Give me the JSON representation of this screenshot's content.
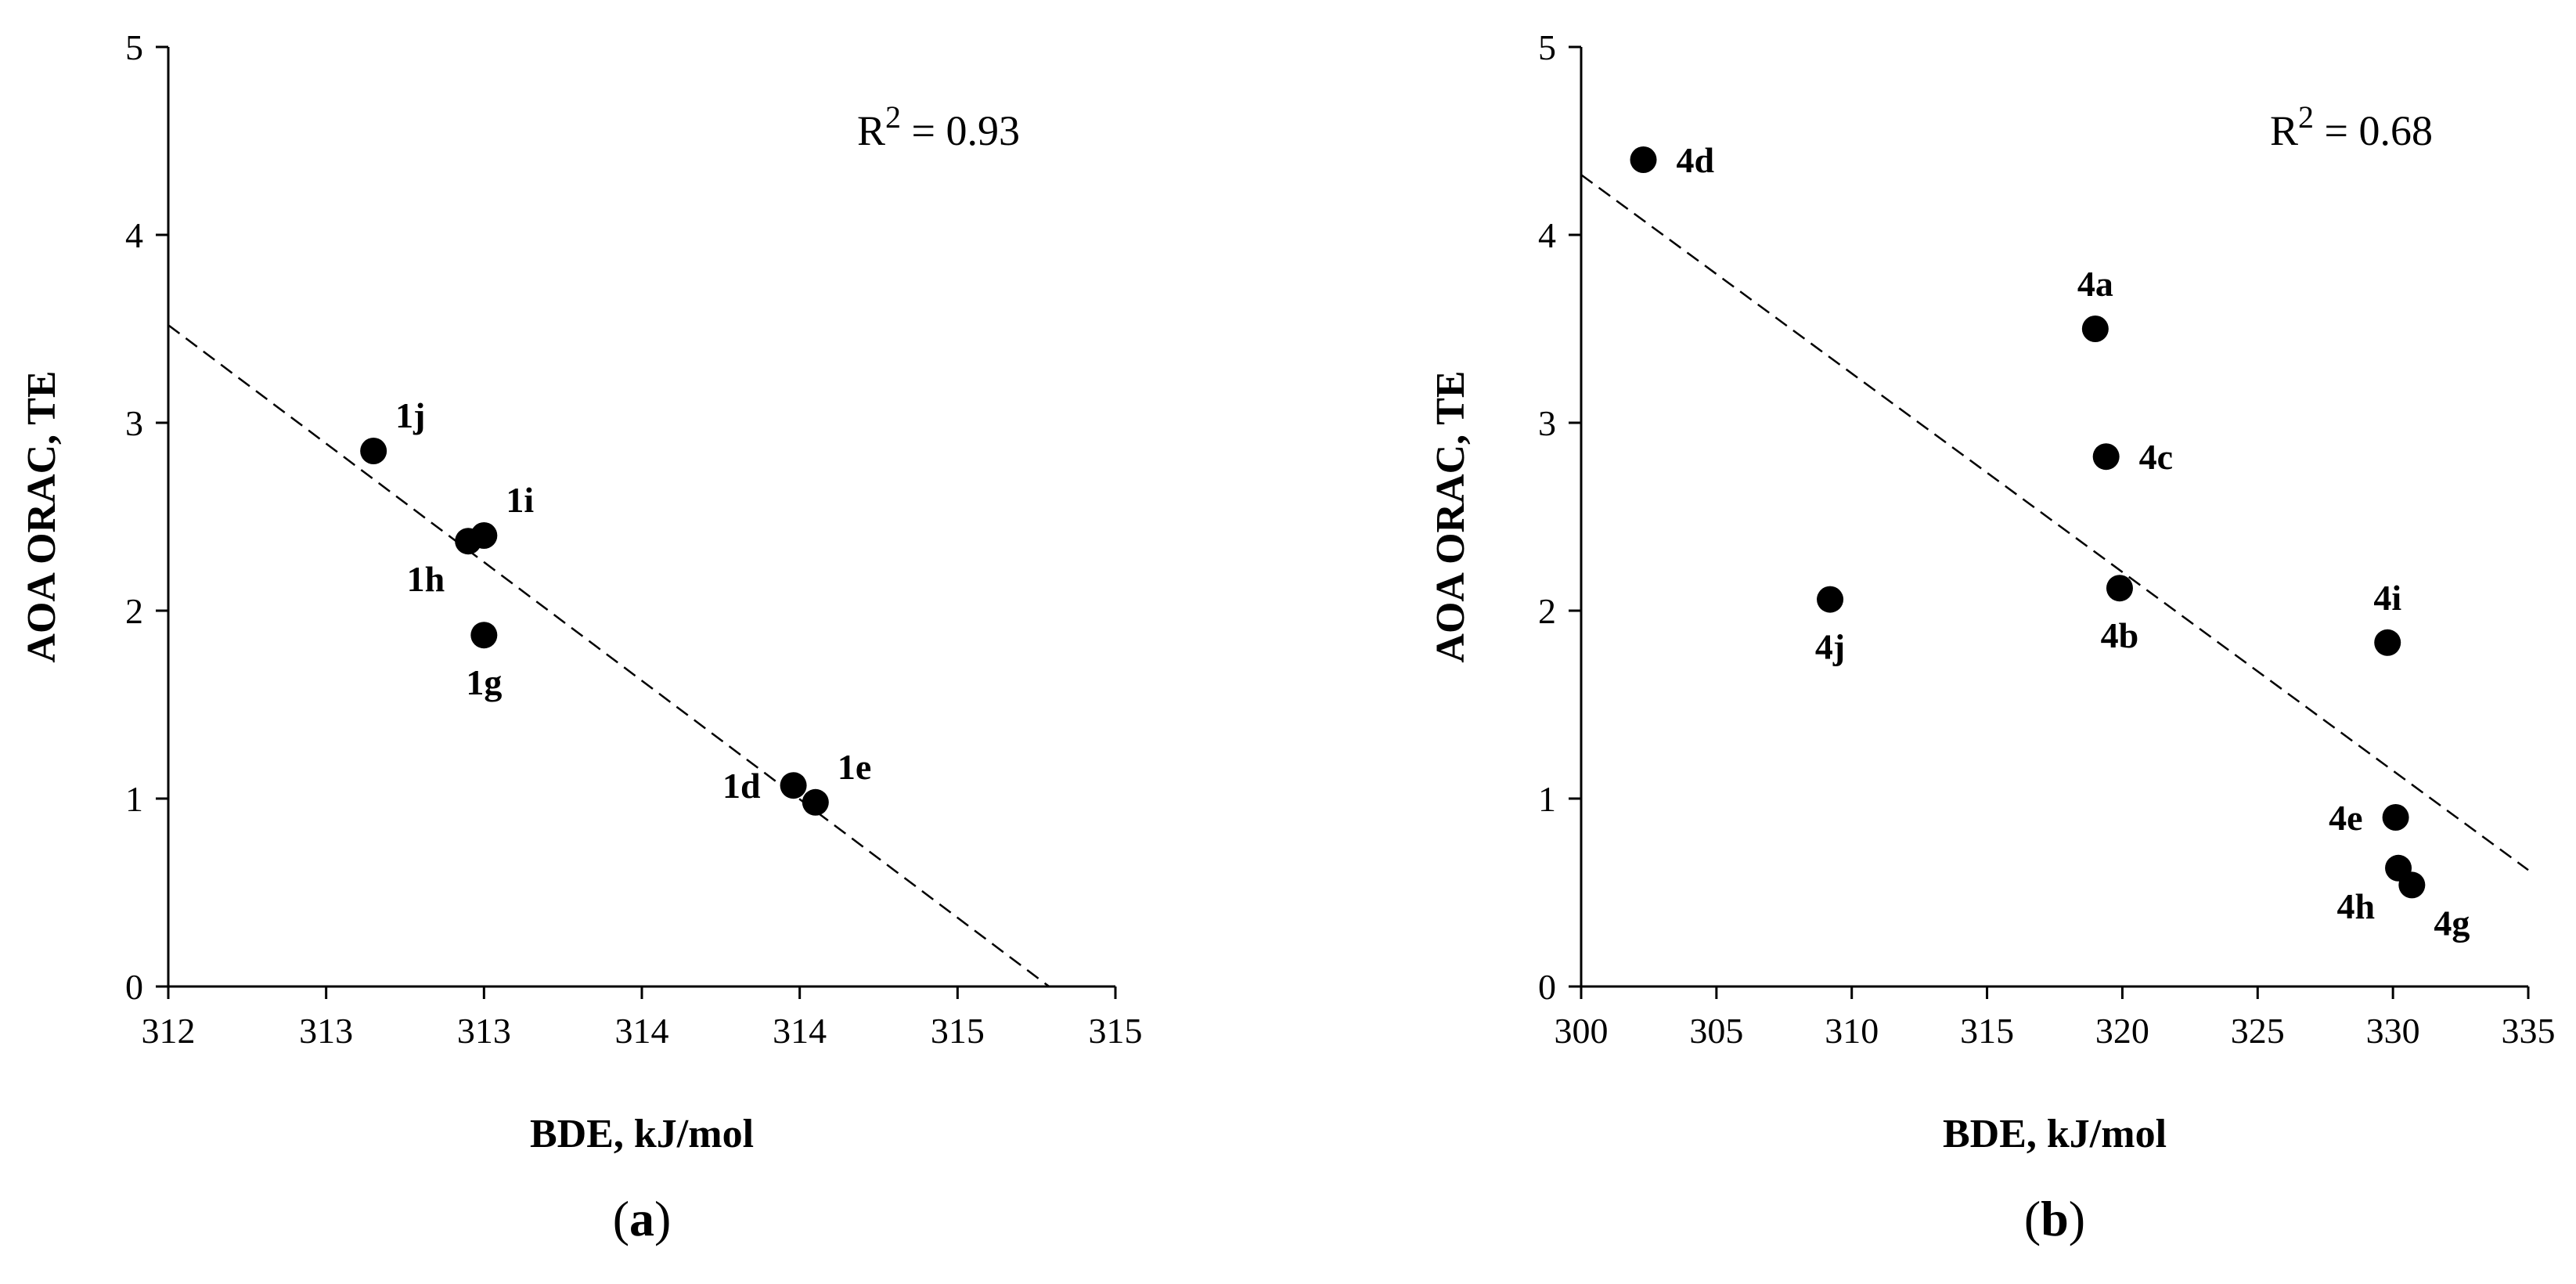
{
  "chart_data": [
    {
      "type": "scatter",
      "panel": "(a)",
      "caption_letter": "a",
      "xlabel": "BDE, kJ/mol",
      "ylabel": "AOA ORAC, TE",
      "xlim": [
        312,
        315
      ],
      "ylim": [
        0,
        5
      ],
      "x_tick_values": [
        312,
        312.5,
        313,
        313.5,
        314,
        314.5,
        315
      ],
      "x_tick_labels": [
        "312",
        "313",
        "313",
        "314",
        "314",
        "315",
        "315"
      ],
      "y_tick_values": [
        0,
        1,
        2,
        3,
        4,
        5
      ],
      "y_tick_labels": [
        "0",
        "1",
        "2",
        "3",
        "4",
        "5"
      ],
      "r2_label": "R",
      "r2_sup": "2",
      "r2_value": " = 0.93",
      "points": [
        {
          "label": "1j",
          "x": 312.65,
          "y": 2.85,
          "label_pos": "above-right"
        },
        {
          "label": "1i",
          "x": 313.0,
          "y": 2.4,
          "label_pos": "above-right"
        },
        {
          "label": "1h",
          "x": 312.95,
          "y": 2.37,
          "label_pos": "below-left"
        },
        {
          "label": "1g",
          "x": 313.0,
          "y": 1.87,
          "label_pos": "below"
        },
        {
          "label": "1d",
          "x": 313.98,
          "y": 1.07,
          "label_pos": "left"
        },
        {
          "label": "1e",
          "x": 314.05,
          "y": 0.98,
          "label_pos": "above-right"
        }
      ],
      "fit_line": {
        "x": [
          312.0,
          314.79
        ],
        "y": [
          3.52,
          0.0
        ]
      }
    },
    {
      "type": "scatter",
      "panel": "(b)",
      "caption_letter": "b",
      "xlabel": "BDE, kJ/mol",
      "ylabel": "AOA ORAC, TE",
      "xlim": [
        300,
        335
      ],
      "ylim": [
        0,
        5
      ],
      "x_tick_values": [
        300,
        305,
        310,
        315,
        320,
        325,
        330,
        335
      ],
      "x_tick_labels": [
        "300",
        "305",
        "310",
        "315",
        "320",
        "325",
        "330",
        "335"
      ],
      "y_tick_values": [
        0,
        1,
        2,
        3,
        4,
        5
      ],
      "y_tick_labels": [
        "0",
        "1",
        "2",
        "3",
        "4",
        "5"
      ],
      "r2_label": "R",
      "r2_sup": "2",
      "r2_value": " = 0.68",
      "points": [
        {
          "label": "4d",
          "x": 302.3,
          "y": 4.4,
          "label_pos": "right"
        },
        {
          "label": "4a",
          "x": 319.0,
          "y": 3.5,
          "label_pos": "above"
        },
        {
          "label": "4c",
          "x": 319.4,
          "y": 2.82,
          "label_pos": "right"
        },
        {
          "label": "4j",
          "x": 309.2,
          "y": 2.06,
          "label_pos": "below"
        },
        {
          "label": "4b",
          "x": 319.9,
          "y": 2.12,
          "label_pos": "below"
        },
        {
          "label": "4i",
          "x": 329.8,
          "y": 1.83,
          "label_pos": "above"
        },
        {
          "label": "4e",
          "x": 330.1,
          "y": 0.9,
          "label_pos": "left"
        },
        {
          "label": "4h",
          "x": 330.2,
          "y": 0.63,
          "label_pos": "below-left"
        },
        {
          "label": "4g",
          "x": 330.7,
          "y": 0.54,
          "label_pos": "below-right"
        }
      ],
      "fit_line": {
        "x": [
          300.0,
          335.0
        ],
        "y": [
          4.32,
          0.62
        ]
      }
    }
  ]
}
